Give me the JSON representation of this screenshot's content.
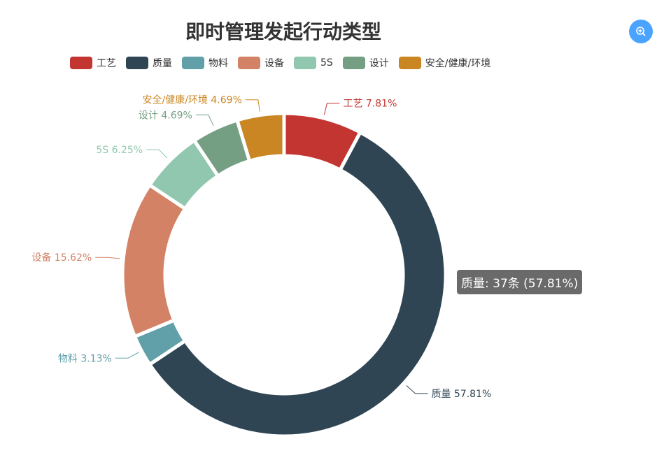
{
  "chart_data": {
    "type": "pie",
    "title": "即时管理发起行动类型",
    "unit": "条",
    "categories": [
      "工艺",
      "质量",
      "物料",
      "设备",
      "5S",
      "设计",
      "安全/健康/环境"
    ],
    "values": [
      5,
      37,
      2,
      10,
      4,
      3,
      3
    ],
    "percents": [
      "7.81%",
      "57.81%",
      "3.13%",
      "15.62%",
      "6.25%",
      "4.69%",
      "4.69%"
    ],
    "colors": [
      "#c23531",
      "#2f4554",
      "#61a0a8",
      "#d48265",
      "#91c7ae",
      "#749f83",
      "#ca8622"
    ],
    "legend_position": "top",
    "donut": true
  },
  "tooltip": {
    "text": "质量: 37条 (57.81%)"
  },
  "toolbar": {
    "icon": "zoom-in-icon"
  }
}
